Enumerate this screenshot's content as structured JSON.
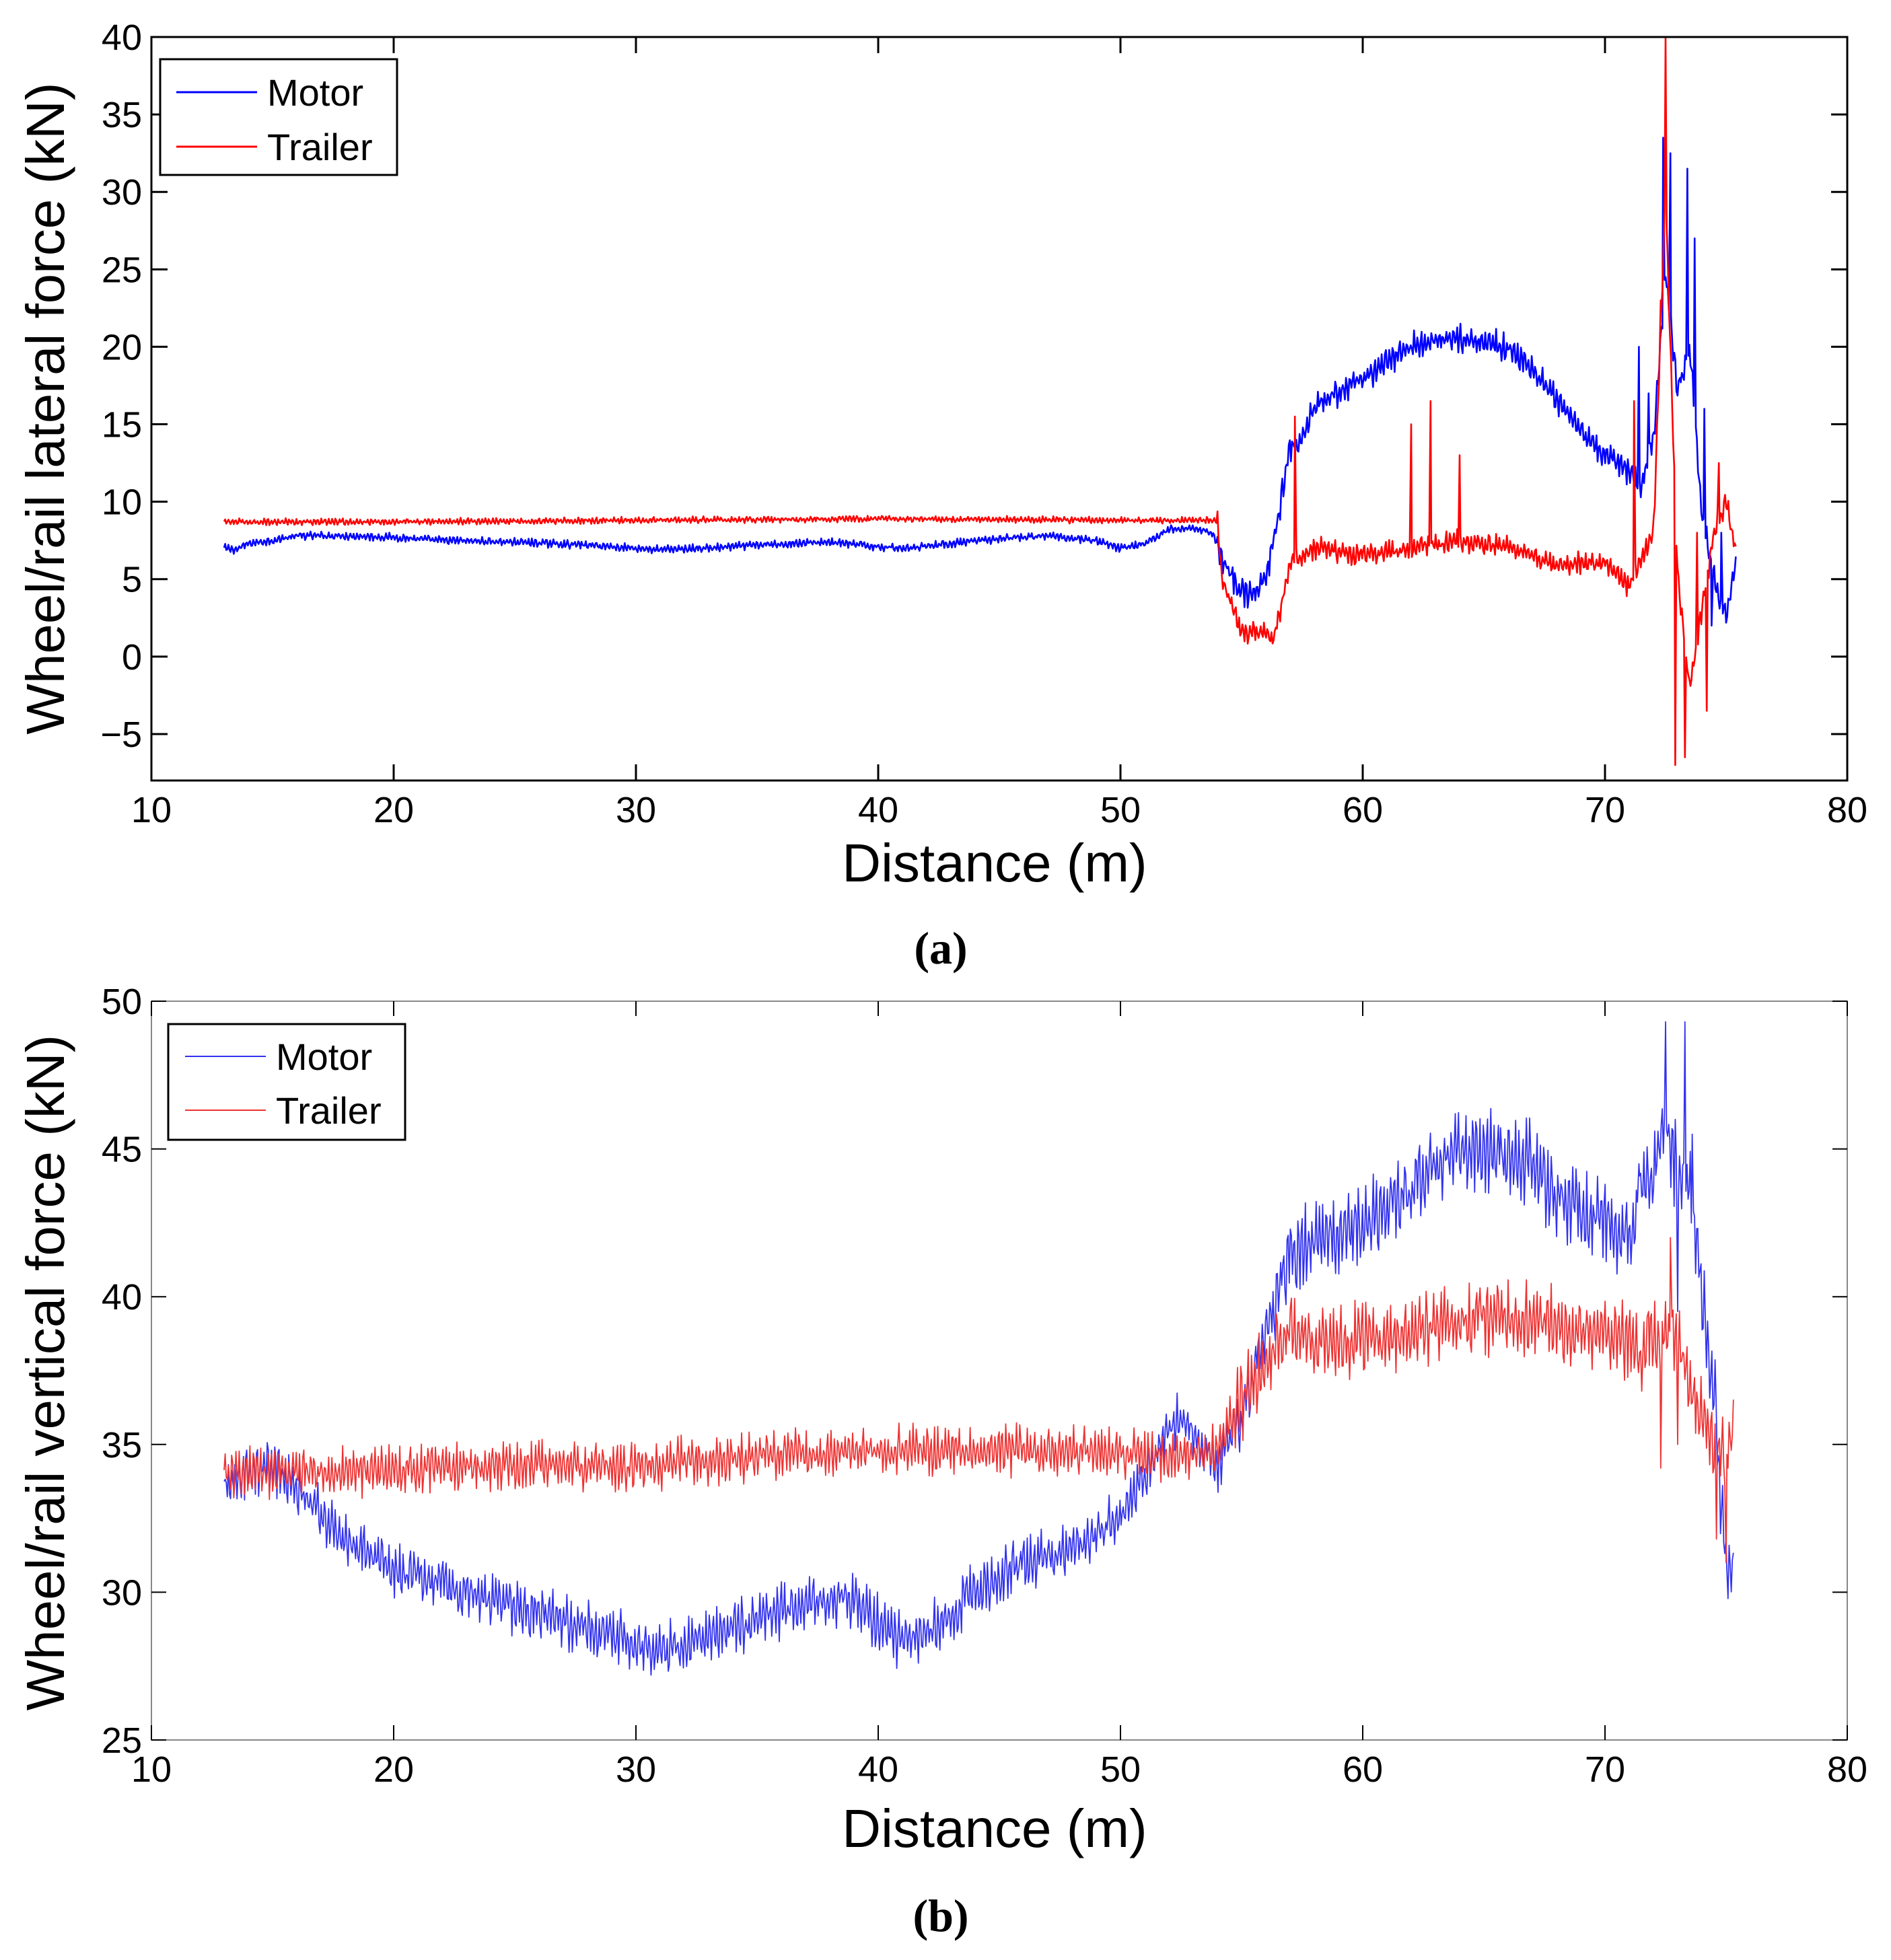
{
  "figure": {
    "panel_a_label": "(a)",
    "panel_b_label": "(b)"
  },
  "colors": {
    "motor": "#0000ff",
    "trailer": "#ff0000",
    "motor_b": "#3333ee",
    "trailer_b": "#ee3333",
    "axis": "#000000",
    "background": "#ffffff"
  },
  "chart_data": [
    {
      "type": "line",
      "title": "",
      "xlabel": "Distance (m)",
      "ylabel": "Wheel/rail lateral force (kN)",
      "xlim": [
        10,
        80
      ],
      "ylim": [
        -8,
        40
      ],
      "xticks": [
        10,
        20,
        30,
        40,
        50,
        60,
        70,
        80
      ],
      "yticks": [
        -5,
        0,
        5,
        10,
        15,
        20,
        25,
        30,
        35,
        40
      ],
      "ytick_labels": [
        "−5",
        "0",
        "5",
        "10",
        "15",
        "20",
        "25",
        "30",
        "35",
        "40"
      ],
      "grid": false,
      "legend_position": "top-left",
      "series": [
        {
          "name": "Motor",
          "color_key": "motor",
          "noise": 0.25,
          "points": [
            [
              13,
              7
            ],
            [
              13.5,
              6.9
            ],
            [
              14,
              7.3
            ],
            [
              15,
              7.5
            ],
            [
              16,
              7.8
            ],
            [
              18,
              7.8
            ],
            [
              20,
              7.7
            ],
            [
              22,
              7.5
            ],
            [
              25,
              7.4
            ],
            [
              28,
              7.2
            ],
            [
              30,
              7.0
            ],
            [
              31,
              6.9
            ],
            [
              33,
              7.0
            ],
            [
              35,
              7.2
            ],
            [
              38,
              7.4
            ],
            [
              40,
              7.1
            ],
            [
              41,
              7.0
            ],
            [
              43,
              7.3
            ],
            [
              45,
              7.6
            ],
            [
              47,
              7.8
            ],
            [
              49,
              7.5
            ],
            [
              50,
              7.0
            ],
            [
              51,
              7.3
            ],
            [
              52,
              8.2
            ],
            [
              53,
              8.3
            ],
            [
              53.8,
              8.0
            ],
            [
              54.3,
              6.0
            ],
            [
              55,
              4.2
            ],
            [
              55.5,
              4.0
            ],
            [
              56,
              5.0
            ],
            [
              56.5,
              9.0
            ],
            [
              57,
              13.5
            ],
            [
              57.5,
              14.0
            ],
            [
              58,
              16.0
            ],
            [
              59,
              17.0
            ],
            [
              60,
              18.0
            ],
            [
              61,
              19.0
            ],
            [
              62,
              20.0
            ],
            [
              63,
              20.5
            ],
            [
              64,
              20.5
            ],
            [
              65,
              20.3
            ],
            [
              66,
              20.0
            ],
            [
              67,
              18.5
            ],
            [
              68,
              16.5
            ],
            [
              69,
              14.5
            ],
            [
              70,
              13.0
            ],
            [
              71,
              12.0
            ],
            [
              71.5,
              11.0
            ],
            [
              72,
              14.0
            ],
            [
              72.5,
              25.0
            ],
            [
              73,
              17.0
            ],
            [
              73.5,
              20.0
            ],
            [
              74,
              9.0
            ],
            [
              74.5,
              5.0
            ],
            [
              75,
              2.5
            ],
            [
              75.4,
              6.0
            ]
          ],
          "spikes": [
            [
              72.4,
              33.5
            ],
            [
              72.7,
              32.5
            ],
            [
              73.1,
              18.0
            ],
            [
              73.4,
              31.5
            ],
            [
              73.7,
              27.0
            ],
            [
              74.1,
              16.0
            ],
            [
              74.4,
              2.0
            ],
            [
              74.8,
              8.0
            ],
            [
              71.4,
              20.0
            ],
            [
              71.8,
              17.0
            ]
          ]
        },
        {
          "name": "Trailer",
          "color_key": "trailer",
          "noise": 0.2,
          "points": [
            [
              13,
              8.7
            ],
            [
              20,
              8.7
            ],
            [
              30,
              8.8
            ],
            [
              40,
              8.9
            ],
            [
              50,
              8.8
            ],
            [
              53,
              8.8
            ],
            [
              54,
              8.8
            ],
            [
              54.2,
              5.0
            ],
            [
              55,
              1.5
            ],
            [
              56,
              1.5
            ],
            [
              56.3,
              1.0
            ],
            [
              57,
              6.0
            ],
            [
              58,
              7.0
            ],
            [
              60,
              6.5
            ],
            [
              62,
              7.0
            ],
            [
              64,
              7.5
            ],
            [
              66,
              7.0
            ],
            [
              68,
              6.0
            ],
            [
              70,
              6.0
            ],
            [
              71,
              4.5
            ],
            [
              71.5,
              6.0
            ],
            [
              72,
              8.0
            ],
            [
              72.5,
              30.0
            ],
            [
              73,
              5.0
            ],
            [
              73.5,
              -2.0
            ],
            [
              74,
              3.0
            ],
            [
              74.5,
              8.0
            ],
            [
              75,
              10.0
            ],
            [
              75.4,
              6.5
            ]
          ],
          "spikes": [
            [
              72.5,
              40.0
            ],
            [
              72.3,
              23.0
            ],
            [
              72.9,
              -7.0
            ],
            [
              73.3,
              -6.5
            ],
            [
              73.8,
              8.0
            ],
            [
              74.2,
              -3.5
            ],
            [
              74.7,
              12.5
            ],
            [
              71.2,
              16.5
            ],
            [
              57.2,
              15.5
            ],
            [
              62.8,
              16.5
            ],
            [
              62.0,
              15.0
            ],
            [
              64.0,
              13.0
            ]
          ]
        }
      ]
    },
    {
      "type": "line",
      "title": "",
      "xlabel": "Distance (m)",
      "ylabel": "Wheel/rail vertical force (kN)",
      "xlim": [
        10,
        80
      ],
      "ylim": [
        25,
        50
      ],
      "xticks": [
        10,
        20,
        30,
        40,
        50,
        60,
        70,
        80
      ],
      "yticks": [
        25,
        30,
        35,
        40,
        45,
        50
      ],
      "ytick_labels": [
        "25",
        "30",
        "35",
        "40",
        "45",
        "50"
      ],
      "grid": false,
      "legend_position": "top-left",
      "series": [
        {
          "name": "Motor",
          "color_key": "motor_b",
          "noise": 0.9,
          "points": [
            [
              13,
              33.6
            ],
            [
              14,
              34.2
            ],
            [
              15,
              34.3
            ],
            [
              16,
              33.6
            ],
            [
              17,
              32.6
            ],
            [
              18,
              31.8
            ],
            [
              20,
              30.8
            ],
            [
              22,
              30.2
            ],
            [
              25,
              29.5
            ],
            [
              28,
              28.8
            ],
            [
              30,
              28.3
            ],
            [
              31,
              28.0
            ],
            [
              32,
              28.2
            ],
            [
              34,
              28.8
            ],
            [
              36,
              29.4
            ],
            [
              38,
              29.8
            ],
            [
              39,
              29.8
            ],
            [
              40,
              29.0
            ],
            [
              41,
              28.3
            ],
            [
              42,
              28.6
            ],
            [
              44,
              30.0
            ],
            [
              46,
              31.0
            ],
            [
              48,
              31.5
            ],
            [
              50,
              32.5
            ],
            [
              51,
              34.0
            ],
            [
              52,
              35.5
            ],
            [
              52.5,
              36.0
            ],
            [
              53,
              35.3
            ],
            [
              54,
              34.5
            ],
            [
              55,
              36.0
            ],
            [
              56,
              39.0
            ],
            [
              57,
              41.5
            ],
            [
              58,
              41.8
            ],
            [
              60,
              42.5
            ],
            [
              62,
              43.5
            ],
            [
              63,
              44.5
            ],
            [
              64,
              45.0
            ],
            [
              65,
              45.0
            ],
            [
              66,
              44.8
            ],
            [
              67,
              44.5
            ],
            [
              68,
              43.5
            ],
            [
              69,
              42.8
            ],
            [
              70,
              42.5
            ],
            [
              71,
              42.0
            ],
            [
              71.5,
              43.5
            ],
            [
              72,
              44.0
            ],
            [
              72.5,
              46.0
            ],
            [
              73,
              44.0
            ],
            [
              73.5,
              43.5
            ],
            [
              74,
              40.0
            ],
            [
              74.5,
              37.0
            ],
            [
              74.8,
              33.0
            ],
            [
              75,
              30.5
            ],
            [
              75.3,
              31.0
            ]
          ],
          "spikes": [
            [
              72.5,
              49.3
            ],
            [
              73.3,
              49.3
            ],
            [
              72.9,
              46.0
            ],
            [
              73.6,
              45.5
            ],
            [
              71.4,
              44.5
            ],
            [
              73.0,
              39.5
            ]
          ]
        },
        {
          "name": "Trailer",
          "color_key": "trailer_b",
          "noise": 0.8,
          "points": [
            [
              13,
              34.0
            ],
            [
              20,
              34.1
            ],
            [
              25,
              34.3
            ],
            [
              30,
              34.3
            ],
            [
              35,
              34.6
            ],
            [
              40,
              34.8
            ],
            [
              45,
              34.8
            ],
            [
              50,
              34.7
            ],
            [
              53,
              34.6
            ],
            [
              54,
              34.8
            ],
            [
              55,
              36.5
            ],
            [
              56,
              37.8
            ],
            [
              57,
              38.8
            ],
            [
              58,
              38.5
            ],
            [
              60,
              38.5
            ],
            [
              62,
              38.8
            ],
            [
              64,
              39.3
            ],
            [
              66,
              39.3
            ],
            [
              68,
              39.0
            ],
            [
              70,
              38.7
            ],
            [
              71,
              38.5
            ],
            [
              71.5,
              38.0
            ],
            [
              72,
              38.5
            ],
            [
              72.5,
              39.0
            ],
            [
              73,
              38.5
            ],
            [
              73.5,
              37.0
            ],
            [
              74,
              36.0
            ],
            [
              74.5,
              35.0
            ],
            [
              75,
              34.5
            ],
            [
              75.3,
              35.8
            ]
          ],
          "spikes": [
            [
              72.3,
              34.2
            ],
            [
              72.7,
              42.0
            ],
            [
              73.0,
              35.0
            ],
            [
              74.6,
              31.8
            ],
            [
              75.0,
              31.0
            ],
            [
              71.8,
              39.5
            ]
          ]
        }
      ]
    }
  ]
}
